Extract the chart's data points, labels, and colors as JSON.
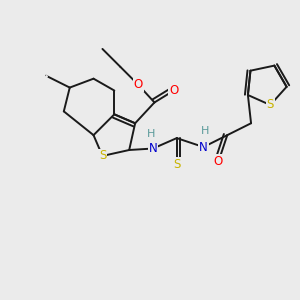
{
  "background_color": "#ebebeb",
  "colors": {
    "S": "#c8b400",
    "O": "#ff0000",
    "N": "#0000cd",
    "C": "#1a1a1a",
    "H": "#5a9a9a",
    "bond": "#1a1a1a"
  },
  "figsize": [
    3.0,
    3.0
  ],
  "dpi": 100
}
